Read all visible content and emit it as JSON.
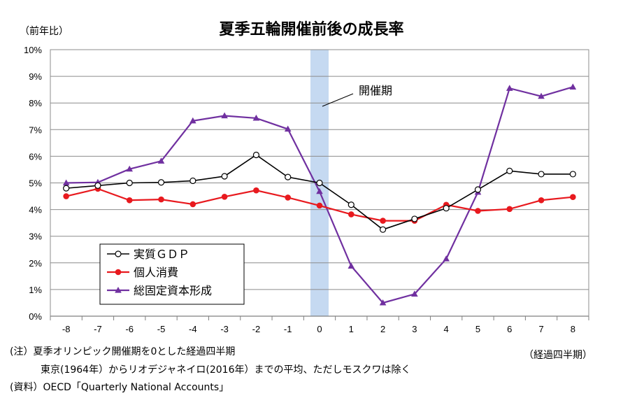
{
  "title": "夏季五輪開催前後の成長率",
  "y_unit": "（前年比）",
  "x_unit": "（経過四半期）",
  "notes": {
    "note1": "(注）夏季オリンピック開催期を0とした経過四半期",
    "note2": "東京(1964年）からリオデジャネイロ(2016年）までの平均、ただしモスクワは除く",
    "source": "(資料）OECD「Quarterly National Accounts」"
  },
  "annotation": "開催期",
  "chart_data": {
    "type": "line",
    "title": "夏季五輪開催前後の成長率",
    "xlabel": "（経過四半期）",
    "ylabel": "（前年比）",
    "x": [
      -8,
      -7,
      -6,
      -5,
      -4,
      -3,
      -2,
      -1,
      0,
      1,
      2,
      3,
      4,
      5,
      6,
      7,
      8
    ],
    "x_tick_labels": [
      "-8",
      "-7",
      "-6",
      "-5",
      "-4",
      "-3",
      "-2",
      "-1",
      "0",
      "1",
      "2",
      "3",
      "4",
      "5",
      "6",
      "7",
      "8"
    ],
    "y_tick_labels": [
      "0%",
      "1%",
      "2%",
      "3%",
      "4%",
      "5%",
      "6%",
      "7%",
      "8%",
      "9%",
      "10%"
    ],
    "ylim": [
      0,
      10
    ],
    "grid": true,
    "legend_position": "bottom-left",
    "highlight_band": {
      "x": 0,
      "label": "開催期",
      "color": "#c5d9f1"
    },
    "series": [
      {
        "name": "実質ＧＤＰ",
        "color": "#000000",
        "marker": "open-circle",
        "values": [
          4.8,
          4.9,
          5.0,
          5.02,
          5.08,
          5.25,
          6.05,
          5.22,
          5.0,
          4.18,
          3.25,
          3.65,
          4.05,
          4.75,
          5.45,
          5.33,
          5.33
        ]
      },
      {
        "name": "個人消費",
        "color": "#e8191e",
        "marker": "filled-circle",
        "values": [
          4.5,
          4.78,
          4.35,
          4.38,
          4.2,
          4.48,
          4.72,
          4.45,
          4.15,
          3.82,
          3.58,
          3.58,
          4.18,
          3.95,
          4.02,
          4.35,
          4.47
        ]
      },
      {
        "name": "総固定資本形成",
        "color": "#7030a0",
        "marker": "triangle",
        "values": [
          5.0,
          5.02,
          5.52,
          5.82,
          7.33,
          7.52,
          7.43,
          7.02,
          4.68,
          1.88,
          0.5,
          0.83,
          2.15,
          4.65,
          8.55,
          8.25,
          8.6
        ]
      }
    ]
  }
}
